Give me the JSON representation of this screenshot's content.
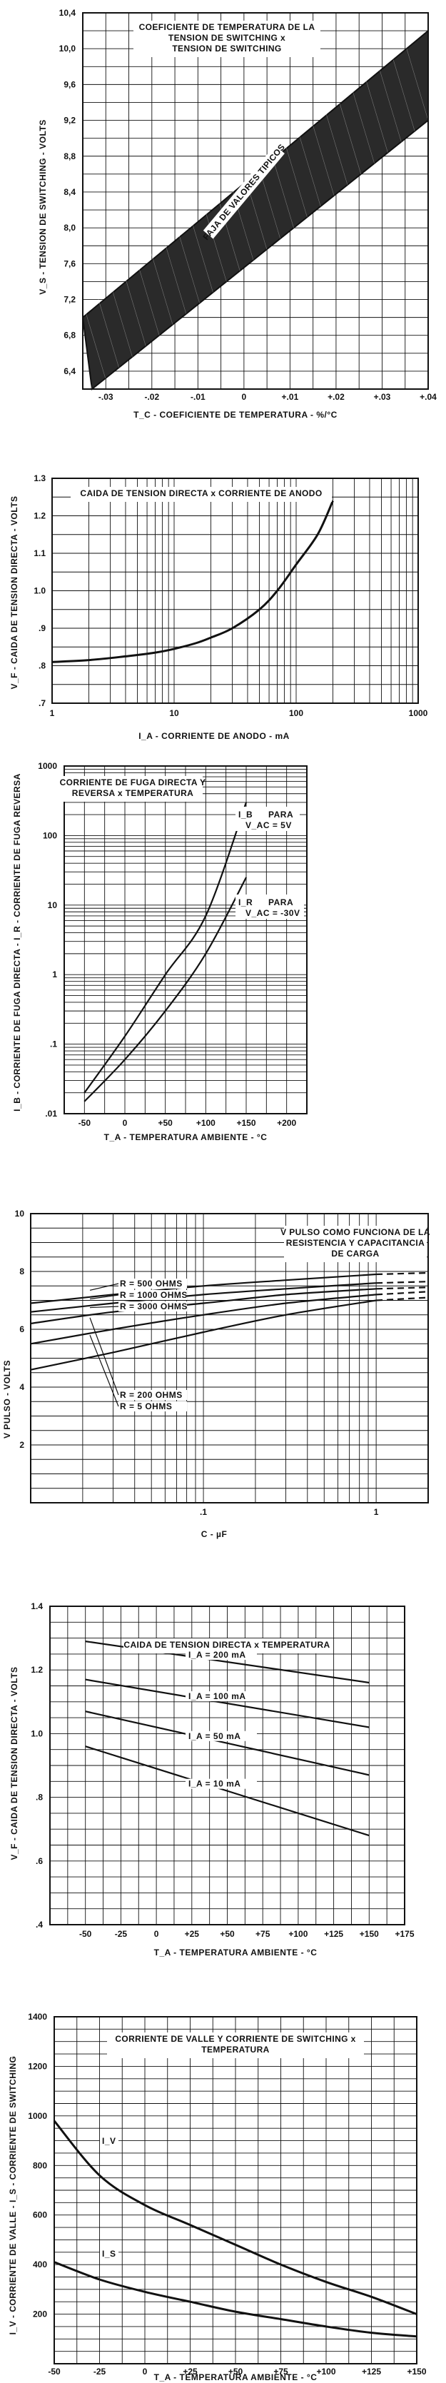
{
  "colors": {
    "ink": "#111111",
    "paper": "#ffffff"
  },
  "chart_data": [
    {
      "type": "area",
      "title": [
        "COEFICIENTE DE TEMPERATURA DE LA",
        "TENSION DE SWITCHING x",
        "TENSION DE SWITCHING"
      ],
      "xlabel": "T_C - COEFICIENTE DE TEMPERATURA - %/°C",
      "ylabel": "V_S - TENSION DE SWITCHING - VOLTS",
      "xlim": [
        -0.035,
        0.04
      ],
      "ylim": [
        6.2,
        10.4
      ],
      "x_ticks": [
        -0.03,
        -0.02,
        -0.01,
        0,
        0.01,
        0.02,
        0.03,
        0.04
      ],
      "x_tick_labels": [
        "-.03",
        "-.02",
        "-.01",
        "0",
        "+.01",
        "+.02",
        "+.03",
        "+.04"
      ],
      "y_ticks": [
        6.4,
        6.8,
        7.2,
        7.6,
        8.0,
        8.4,
        8.8,
        9.2,
        9.6,
        10.0,
        10.4
      ],
      "y_tick_labels": [
        "6,4",
        "6,8",
        "7,2",
        "7,6",
        "8,0",
        "8,4",
        "8,8",
        "9,2",
        "9,6",
        "10,0",
        "10,4"
      ],
      "band_annotation": "FAJA DE VALORES TIPICOS",
      "band_lower": [
        [
          -0.033,
          6.2
        ],
        [
          0.04,
          9.2
        ]
      ],
      "band_upper": [
        [
          -0.035,
          7.0
        ],
        [
          0.04,
          10.2
        ]
      ]
    },
    {
      "type": "line",
      "title": "CAIDA DE TENSION DIRECTA x CORRIENTE DE ANODO",
      "xlabel": "I_A - CORRIENTE DE ANODO - mA",
      "ylabel": "V_F - CAIDA DE TENSION DIRECTA - VOLTS",
      "xscale": "log",
      "xlim": [
        1,
        1000
      ],
      "ylim": [
        0.7,
        1.3
      ],
      "x_ticks": [
        1,
        10,
        100,
        1000
      ],
      "x_tick_labels": [
        "1",
        "10",
        "100",
        "1000"
      ],
      "y_ticks": [
        0.7,
        0.8,
        0.9,
        1.0,
        1.1,
        1.2,
        1.3
      ],
      "y_tick_labels": [
        ".7",
        ".8",
        ".9",
        "1.0",
        "1.1",
        "1.2",
        "1.3"
      ],
      "series": [
        {
          "name": "V_F",
          "x": [
            1,
            2,
            4,
            7,
            10,
            15,
            20,
            30,
            50,
            70,
            100,
            150,
            200
          ],
          "y": [
            0.81,
            0.815,
            0.825,
            0.835,
            0.845,
            0.86,
            0.875,
            0.9,
            0.95,
            1.0,
            1.07,
            1.15,
            1.24
          ]
        }
      ]
    },
    {
      "type": "line",
      "title": [
        "CORRIENTE DE FUGA DIRECTA Y",
        "REVERSA x TEMPERATURA"
      ],
      "xlabel": "T_A - TEMPERATURA AMBIENTE - °C",
      "ylabel": "I_B - CORRIENTE DE FUGA DIRECTA - I_R - CORRIENTE DE FUGA REVERSA",
      "yscale": "log",
      "xlim": [
        -75,
        225
      ],
      "ylim": [
        0.01,
        1000
      ],
      "x_ticks": [
        -50,
        0,
        50,
        100,
        150,
        200
      ],
      "x_tick_labels": [
        "-50",
        "0",
        "+50",
        "+100",
        "+150",
        "+200"
      ],
      "y_ticks": [
        0.01,
        0.1,
        1,
        10,
        100,
        1000
      ],
      "y_tick_labels": [
        ".01",
        ".1",
        "1",
        "10",
        "100",
        "1000"
      ],
      "series": [
        {
          "name": "I_B PARA V_AC = 5V",
          "x": [
            -50,
            0,
            50,
            100,
            150
          ],
          "y": [
            0.02,
            0.13,
            1.0,
            7.0,
            300
          ]
        },
        {
          "name": "I_R PARA V_AC = -30V",
          "x": [
            -50,
            0,
            50,
            100,
            150
          ],
          "y": [
            0.015,
            0.06,
            0.3,
            2.0,
            25
          ]
        }
      ],
      "annotations": [
        "I_B",
        "PARA",
        "V_AC = 5V",
        "I_R",
        "PARA",
        "V_AC = -30V"
      ]
    },
    {
      "type": "line",
      "title": [
        "V PULSO COMO FUNCIONA DE LA",
        "RESISTENCIA Y CAPACITANCIA",
        "DE CARGA"
      ],
      "xlabel": "C - µF",
      "ylabel": "V PULSO - VOLTS",
      "xscale": "log",
      "xlim": [
        0.01,
        2
      ],
      "ylim": [
        0,
        10
      ],
      "x_ticks": [
        0.1,
        1
      ],
      "x_tick_labels": [
        ".1",
        "1"
      ],
      "y_ticks": [
        2,
        4,
        6,
        8,
        10
      ],
      "y_tick_labels": [
        "2",
        "4",
        "6",
        "8",
        "10"
      ],
      "series": [
        {
          "name": "R = 500 OHMS",
          "x": [
            0.01,
            0.03,
            0.1,
            0.3,
            1,
            2
          ],
          "y": [
            6.9,
            7.2,
            7.5,
            7.7,
            7.9,
            7.95
          ]
        },
        {
          "name": "R = 1000 OHMS",
          "x": [
            0.01,
            0.03,
            0.1,
            0.3,
            1,
            2
          ],
          "y": [
            6.6,
            6.9,
            7.2,
            7.4,
            7.6,
            7.65
          ]
        },
        {
          "name": "R = 3000 OHMS",
          "x": [
            0.01,
            0.03,
            0.1,
            0.3,
            1,
            2
          ],
          "y": [
            6.2,
            6.6,
            6.9,
            7.2,
            7.4,
            7.45
          ]
        },
        {
          "name": "R = 200 OHMS",
          "x": [
            0.01,
            0.03,
            0.1,
            0.3,
            1,
            2
          ],
          "y": [
            5.5,
            6.0,
            6.5,
            6.9,
            7.2,
            7.3
          ]
        },
        {
          "name": "R = 5 OHMS",
          "x": [
            0.01,
            0.03,
            0.1,
            0.3,
            1,
            2
          ],
          "y": [
            4.6,
            5.2,
            5.9,
            6.5,
            7.0,
            7.1
          ]
        }
      ],
      "dashed_beyond_x": 1
    },
    {
      "type": "line",
      "title": "CAIDA DE TENSION DIRECTA x TEMPERATURA",
      "xlabel": "T_A - TEMPERATURA AMBIENTE - °C",
      "ylabel": "V_F - CAIDA DE TENSION DIRECTA - VOLTS",
      "xlim": [
        -75,
        175
      ],
      "ylim": [
        0.4,
        1.4
      ],
      "x_ticks": [
        -50,
        -25,
        0,
        25,
        50,
        75,
        100,
        125,
        150,
        175
      ],
      "x_tick_labels": [
        "-50",
        "-25",
        "0",
        "+25",
        "+50",
        "+75",
        "+100",
        "+125",
        "+150",
        "+175"
      ],
      "y_ticks": [
        0.4,
        0.6,
        0.8,
        1.0,
        1.2,
        1.4
      ],
      "y_tick_labels": [
        ".4",
        ".6",
        ".8",
        "1.0",
        "1.2",
        "1.4"
      ],
      "series": [
        {
          "name": "I_A = 200 mA",
          "x": [
            -50,
            150
          ],
          "y": [
            1.29,
            1.16
          ]
        },
        {
          "name": "I_A = 100 mA",
          "x": [
            -50,
            150
          ],
          "y": [
            1.17,
            1.02
          ]
        },
        {
          "name": "I_A = 50 mA",
          "x": [
            -50,
            150
          ],
          "y": [
            1.07,
            0.87
          ]
        },
        {
          "name": "I_A = 10 mA",
          "x": [
            -50,
            150
          ],
          "y": [
            0.96,
            0.68
          ]
        }
      ]
    },
    {
      "type": "line",
      "title": [
        "CORRIENTE DE VALLE Y CORRIENTE DE SWITCHING x",
        "TEMPERATURA"
      ],
      "xlabel": "T_A - TEMPERATURA AMBIENTE - °C",
      "ylabel": "I_V - CORRIENTE DE VALLE - I_S - CORRIENTE DE SWITCHING",
      "xlim": [
        -50,
        150
      ],
      "ylim": [
        0,
        1400
      ],
      "x_ticks": [
        -50,
        -25,
        0,
        25,
        50,
        75,
        100,
        125,
        150
      ],
      "x_tick_labels": [
        "-50",
        "-25",
        "0",
        "+25",
        "+50",
        "+75",
        "+100",
        "+125",
        "+150"
      ],
      "y_ticks": [
        200,
        400,
        600,
        800,
        1000,
        1200,
        1400
      ],
      "y_tick_labels": [
        "200",
        "400",
        "600",
        "800",
        "1000",
        "1200",
        "1400"
      ],
      "series": [
        {
          "name": "I_V",
          "x": [
            -50,
            -25,
            0,
            25,
            50,
            75,
            100,
            125,
            150
          ],
          "y": [
            980,
            760,
            640,
            560,
            480,
            400,
            330,
            270,
            200
          ]
        },
        {
          "name": "I_S",
          "x": [
            -50,
            -25,
            0,
            25,
            50,
            75,
            100,
            125,
            150
          ],
          "y": [
            410,
            340,
            290,
            250,
            210,
            180,
            150,
            125,
            110
          ]
        }
      ]
    }
  ]
}
